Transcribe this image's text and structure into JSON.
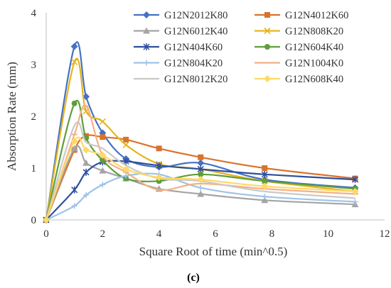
{
  "caption": "(c)",
  "chart_data": {
    "type": "line",
    "xlabel": "Square Root of time (min^0.5)",
    "ylabel": "Absorption Rate (mm)",
    "xlim": [
      0,
      12
    ],
    "ylim": [
      0,
      4
    ],
    "xticks": [
      "0",
      "2",
      "4",
      "6",
      "8",
      "10",
      "12"
    ],
    "yticks": [
      "0",
      "1",
      "2",
      "3",
      "4"
    ],
    "grid": false,
    "legend": "top-right",
    "x": [
      0,
      1,
      1.414,
      2,
      2.828,
      4,
      5.477,
      7.746,
      10.954
    ],
    "series": [
      {
        "name": "G12N2012K80",
        "color": "#4472C4",
        "marker": "diamond",
        "values": [
          0,
          3.35,
          2.38,
          1.68,
          1.18,
          1.02,
          1.1,
          0.78,
          0.62
        ]
      },
      {
        "name": "G12N4012K60",
        "color": "#D9732B",
        "marker": "square",
        "values": [
          0,
          1.35,
          1.62,
          1.6,
          1.55,
          1.38,
          1.21,
          1.0,
          0.8
        ]
      },
      {
        "name": "G12N6012K40",
        "color": "#A5A5A5",
        "marker": "triangle",
        "values": [
          0,
          1.38,
          1.1,
          0.95,
          0.8,
          0.6,
          0.5,
          0.38,
          0.3
        ]
      },
      {
        "name": "G12N808K20",
        "color": "#E6B31E",
        "marker": "x",
        "values": [
          0,
          3.05,
          2.1,
          1.9,
          1.45,
          1.08,
          0.98,
          0.75,
          0.55
        ]
      },
      {
        "name": "G12N404K60",
        "color": "#2F4F9E",
        "marker": "star",
        "values": [
          0,
          0.58,
          0.92,
          1.12,
          1.13,
          1.05,
          0.98,
          0.88,
          0.78
        ]
      },
      {
        "name": "G12N604K40",
        "color": "#5E9E3A",
        "marker": "circle",
        "values": [
          0,
          2.25,
          1.58,
          1.15,
          0.8,
          0.75,
          0.88,
          0.75,
          0.6
        ]
      },
      {
        "name": "G12N804K20",
        "color": "#9DC3E6",
        "marker": "plus",
        "values": [
          0,
          0.27,
          0.48,
          0.68,
          0.85,
          0.88,
          0.62,
          0.45,
          0.35
        ]
      },
      {
        "name": "G12N1004K0",
        "color": "#F4B183",
        "marker": "dash",
        "values": [
          0,
          1.65,
          2.2,
          1.25,
          0.92,
          0.58,
          0.7,
          0.6,
          0.5
        ]
      },
      {
        "name": "G12N8012K20",
        "color": "#C9C9C9",
        "marker": "none",
        "values": [
          0,
          1.82,
          1.5,
          1.38,
          1.05,
          0.8,
          0.75,
          0.55,
          0.42
        ]
      },
      {
        "name": "G12N608K40",
        "color": "#FFD966",
        "marker": "diamond",
        "values": [
          0,
          1.52,
          1.35,
          1.25,
          0.98,
          0.82,
          0.78,
          0.65,
          0.55
        ]
      }
    ]
  }
}
